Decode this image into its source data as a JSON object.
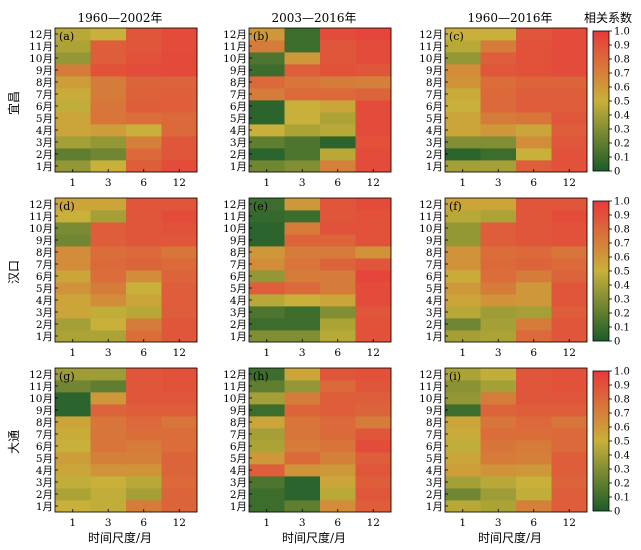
{
  "figure": {
    "col_titles": [
      "1960—2002年",
      "2003—2016年",
      "1960—2016年"
    ],
    "row_labels": [
      "宜昌",
      "汉口",
      "大通"
    ],
    "xlabel": "时间尺度/月",
    "colorbar_title": "相关系数"
  },
  "colors": {
    "scale": [
      "#1a5c2a",
      "#c8b03a",
      "#e8393a"
    ]
  },
  "chart_data": {
    "type": "heatmap",
    "x_categories": [
      "1",
      "3",
      "6",
      "12"
    ],
    "y_categories": [
      "1月",
      "2月",
      "3月",
      "4月",
      "5月",
      "6月",
      "7月",
      "8月",
      "9月",
      "10月",
      "11月",
      "12月"
    ],
    "colorbar": {
      "min": 0,
      "max": 1.0,
      "ticks": [
        "0",
        "0.1",
        "0.2",
        "0.3",
        "0.4",
        "0.5",
        "0.6",
        "0.7",
        "0.8",
        "0.9",
        "1.0"
      ]
    },
    "panels": [
      {
        "label": "(a)",
        "values": [
          [
            0.35,
            0.5,
            0.85,
            0.92
          ],
          [
            0.2,
            0.25,
            0.8,
            0.88
          ],
          [
            0.4,
            0.35,
            0.7,
            0.88
          ],
          [
            0.55,
            0.58,
            0.5,
            0.8
          ],
          [
            0.55,
            0.75,
            0.78,
            0.8
          ],
          [
            0.48,
            0.75,
            0.85,
            0.84
          ],
          [
            0.52,
            0.72,
            0.83,
            0.84
          ],
          [
            0.58,
            0.72,
            0.82,
            0.82
          ],
          [
            0.72,
            0.9,
            0.92,
            0.93
          ],
          [
            0.35,
            0.85,
            0.9,
            0.93
          ],
          [
            0.42,
            0.85,
            0.88,
            0.92
          ],
          [
            0.45,
            0.5,
            0.88,
            0.92
          ]
        ]
      },
      {
        "label": "(b)",
        "values": [
          [
            0.25,
            0.3,
            0.7,
            0.92
          ],
          [
            0.05,
            0.15,
            0.45,
            0.92
          ],
          [
            0.2,
            0.15,
            0.05,
            0.9
          ],
          [
            0.5,
            0.42,
            0.45,
            0.92
          ],
          [
            0.05,
            0.5,
            0.42,
            0.92
          ],
          [
            0.05,
            0.5,
            0.55,
            0.92
          ],
          [
            0.72,
            0.8,
            0.8,
            0.82
          ],
          [
            0.8,
            0.75,
            0.72,
            0.7
          ],
          [
            0.1,
            0.85,
            0.9,
            0.88
          ],
          [
            0.15,
            0.6,
            0.88,
            0.92
          ],
          [
            0.72,
            0.1,
            0.88,
            0.92
          ],
          [
            0.6,
            0.1,
            0.92,
            0.95
          ]
        ]
      },
      {
        "label": "(c)",
        "values": [
          [
            0.4,
            0.4,
            0.85,
            0.9
          ],
          [
            0.05,
            0.1,
            0.5,
            0.9
          ],
          [
            0.3,
            0.3,
            0.65,
            0.88
          ],
          [
            0.55,
            0.6,
            0.55,
            0.85
          ],
          [
            0.55,
            0.72,
            0.75,
            0.88
          ],
          [
            0.5,
            0.8,
            0.85,
            0.85
          ],
          [
            0.52,
            0.8,
            0.85,
            0.85
          ],
          [
            0.62,
            0.78,
            0.82,
            0.82
          ],
          [
            0.65,
            0.88,
            0.9,
            0.92
          ],
          [
            0.35,
            0.85,
            0.9,
            0.92
          ],
          [
            0.45,
            0.72,
            0.9,
            0.92
          ],
          [
            0.5,
            0.5,
            0.88,
            0.92
          ]
        ]
      },
      {
        "label": "(d)",
        "values": [
          [
            0.42,
            0.42,
            0.78,
            0.88
          ],
          [
            0.4,
            0.5,
            0.72,
            0.88
          ],
          [
            0.55,
            0.48,
            0.45,
            0.85
          ],
          [
            0.55,
            0.65,
            0.55,
            0.85
          ],
          [
            0.62,
            0.72,
            0.5,
            0.85
          ],
          [
            0.55,
            0.78,
            0.65,
            0.82
          ],
          [
            0.65,
            0.8,
            0.82,
            0.8
          ],
          [
            0.65,
            0.78,
            0.8,
            0.75
          ],
          [
            0.25,
            0.85,
            0.88,
            0.88
          ],
          [
            0.28,
            0.85,
            0.88,
            0.9
          ],
          [
            0.5,
            0.4,
            0.88,
            0.92
          ],
          [
            0.55,
            0.55,
            0.88,
            0.88
          ]
        ]
      },
      {
        "label": "(e)",
        "values": [
          [
            0.3,
            0.3,
            0.45,
            0.9
          ],
          [
            0.1,
            0.1,
            0.42,
            0.9
          ],
          [
            0.15,
            0.1,
            0.3,
            0.88
          ],
          [
            0.45,
            0.5,
            0.55,
            0.92
          ],
          [
            0.85,
            0.8,
            0.72,
            0.92
          ],
          [
            0.35,
            0.72,
            0.72,
            0.95
          ],
          [
            0.65,
            0.75,
            0.82,
            0.88
          ],
          [
            0.6,
            0.72,
            0.72,
            0.62
          ],
          [
            0.05,
            0.82,
            0.82,
            0.9
          ],
          [
            0.05,
            0.72,
            0.9,
            0.9
          ],
          [
            0.08,
            0.1,
            0.88,
            0.9
          ],
          [
            0.1,
            0.6,
            0.88,
            0.92
          ]
        ]
      },
      {
        "label": "(f)",
        "values": [
          [
            0.4,
            0.42,
            0.8,
            0.88
          ],
          [
            0.25,
            0.4,
            0.72,
            0.88
          ],
          [
            0.45,
            0.38,
            0.4,
            0.85
          ],
          [
            0.55,
            0.62,
            0.6,
            0.88
          ],
          [
            0.6,
            0.72,
            0.6,
            0.88
          ],
          [
            0.52,
            0.78,
            0.72,
            0.82
          ],
          [
            0.62,
            0.8,
            0.82,
            0.8
          ],
          [
            0.62,
            0.78,
            0.8,
            0.75
          ],
          [
            0.35,
            0.85,
            0.88,
            0.9
          ],
          [
            0.35,
            0.85,
            0.88,
            0.9
          ],
          [
            0.45,
            0.42,
            0.88,
            0.92
          ],
          [
            0.55,
            0.55,
            0.88,
            0.88
          ]
        ]
      },
      {
        "label": "(g)",
        "values": [
          [
            0.5,
            0.48,
            0.72,
            0.82
          ],
          [
            0.42,
            0.48,
            0.4,
            0.82
          ],
          [
            0.48,
            0.5,
            0.45,
            0.8
          ],
          [
            0.55,
            0.62,
            0.62,
            0.82
          ],
          [
            0.58,
            0.7,
            0.7,
            0.82
          ],
          [
            0.5,
            0.75,
            0.72,
            0.78
          ],
          [
            0.52,
            0.75,
            0.78,
            0.78
          ],
          [
            0.55,
            0.75,
            0.8,
            0.75
          ],
          [
            0.05,
            0.82,
            0.85,
            0.85
          ],
          [
            0.05,
            0.6,
            0.88,
            0.88
          ],
          [
            0.25,
            0.2,
            0.88,
            0.9
          ],
          [
            0.38,
            0.38,
            0.88,
            0.9
          ]
        ]
      },
      {
        "label": "(h)",
        "values": [
          [
            0.1,
            0.2,
            0.65,
            0.85
          ],
          [
            0.1,
            0.05,
            0.45,
            0.88
          ],
          [
            0.15,
            0.05,
            0.55,
            0.85
          ],
          [
            0.85,
            0.62,
            0.6,
            0.88
          ],
          [
            0.6,
            0.8,
            0.7,
            0.85
          ],
          [
            0.42,
            0.72,
            0.75,
            0.92
          ],
          [
            0.4,
            0.75,
            0.8,
            0.88
          ],
          [
            0.55,
            0.75,
            0.8,
            0.72
          ],
          [
            0.1,
            0.82,
            0.85,
            0.82
          ],
          [
            0.4,
            0.72,
            0.85,
            0.85
          ],
          [
            0.2,
            0.35,
            0.8,
            0.88
          ],
          [
            0.1,
            0.55,
            0.88,
            0.9
          ]
        ]
      },
      {
        "label": "(i)",
        "values": [
          [
            0.45,
            0.42,
            0.7,
            0.85
          ],
          [
            0.25,
            0.38,
            0.48,
            0.85
          ],
          [
            0.4,
            0.45,
            0.5,
            0.82
          ],
          [
            0.58,
            0.62,
            0.6,
            0.85
          ],
          [
            0.55,
            0.72,
            0.7,
            0.85
          ],
          [
            0.48,
            0.75,
            0.72,
            0.8
          ],
          [
            0.52,
            0.78,
            0.78,
            0.8
          ],
          [
            0.55,
            0.75,
            0.8,
            0.75
          ],
          [
            0.1,
            0.82,
            0.85,
            0.85
          ],
          [
            0.35,
            0.72,
            0.88,
            0.88
          ],
          [
            0.32,
            0.4,
            0.88,
            0.9
          ],
          [
            0.42,
            0.48,
            0.88,
            0.9
          ]
        ]
      }
    ]
  }
}
